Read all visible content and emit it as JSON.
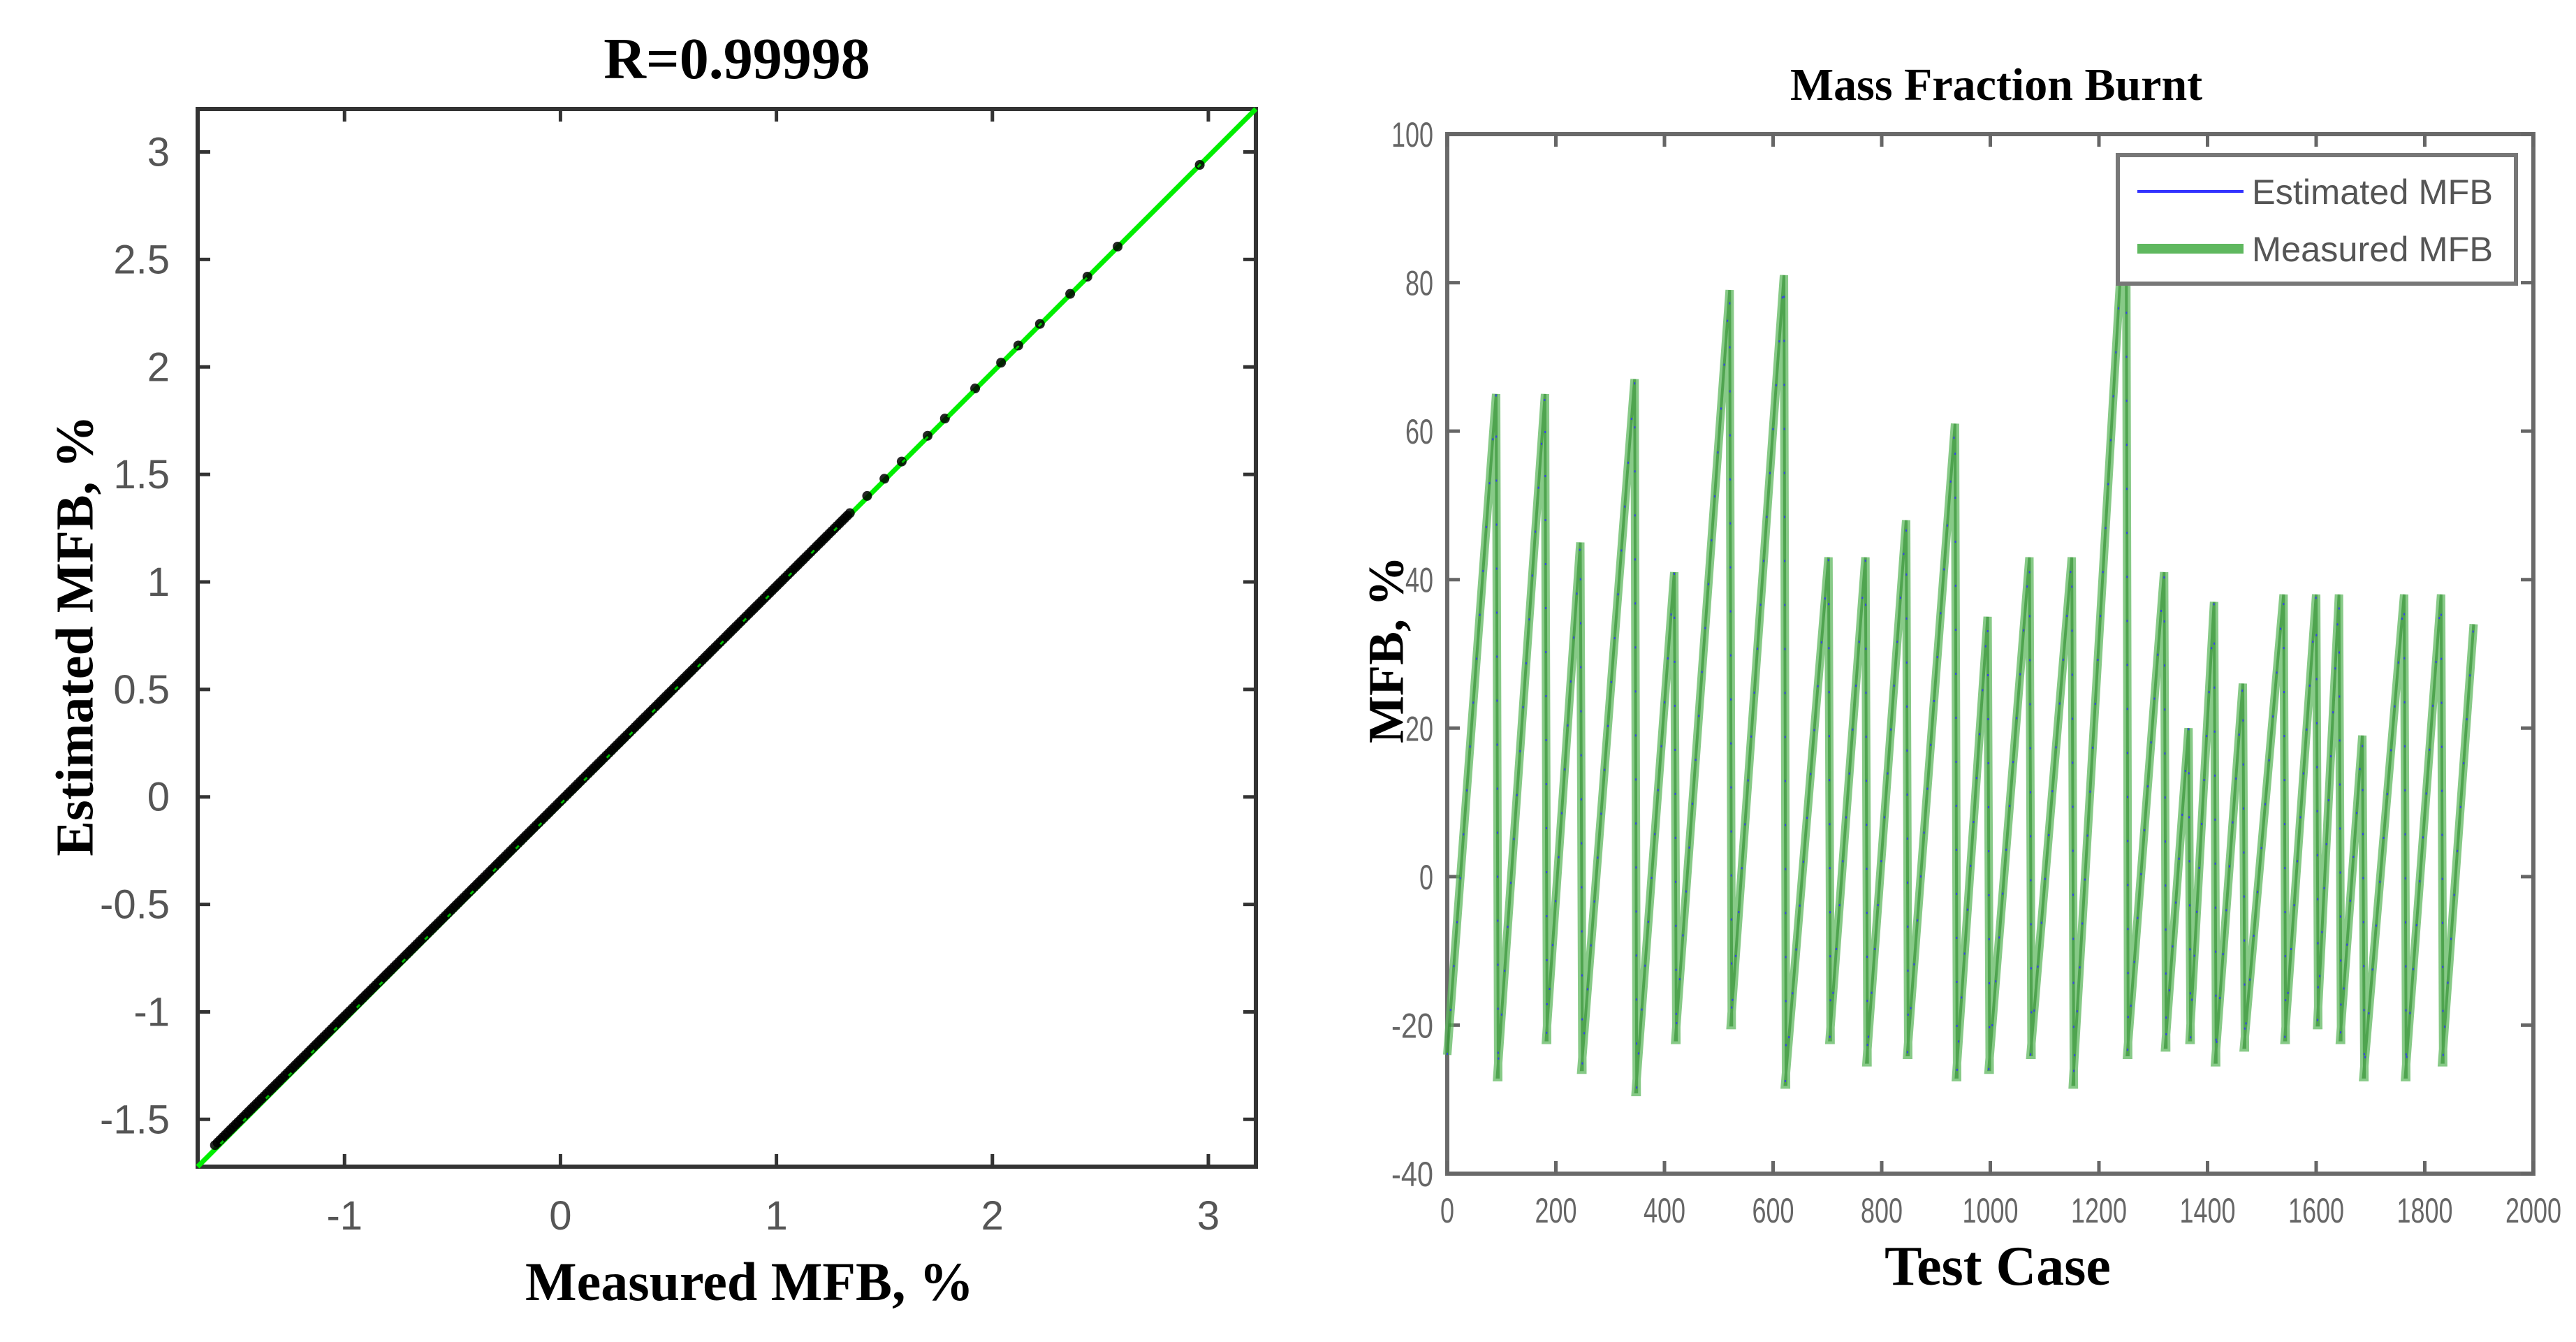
{
  "left_chart": {
    "title": "R=0.99998",
    "xlabel": "Measured MFB, %",
    "ylabel": "Estimated MFB, %",
    "xticks": [
      "-1",
      "0",
      "1",
      "2",
      "3"
    ],
    "yticks": [
      "-1.5",
      "-1",
      "-0.5",
      "0",
      "0.5",
      "1",
      "1.5",
      "2",
      "2.5",
      "3"
    ]
  },
  "right_chart": {
    "title": "Mass Fraction Burnt",
    "xlabel": "Test Case",
    "ylabel": "MFB, %",
    "xticks": [
      "0",
      "200",
      "400",
      "600",
      "800",
      "1000",
      "1200",
      "1400",
      "1600",
      "1800",
      "2000"
    ],
    "yticks": [
      "-40",
      "-20",
      "0",
      "20",
      "40",
      "60",
      "80",
      "100"
    ],
    "legend": [
      {
        "label": "Estimated MFB",
        "color": "#3333ff"
      },
      {
        "label": "Measured MFB",
        "color": "#5fb85f"
      }
    ]
  },
  "chart_data": [
    {
      "type": "scatter",
      "title": "R=0.99998",
      "xlabel": "Measured MFB, %",
      "ylabel": "Estimated MFB, %",
      "xlim": [
        -1.68,
        3.22
      ],
      "ylim": [
        -1.72,
        3.2
      ],
      "xticks": [
        -1,
        0,
        1,
        2,
        3
      ],
      "yticks": [
        -1.5,
        -1,
        -0.5,
        0,
        0.5,
        1,
        1.5,
        2,
        2.5,
        3
      ],
      "grid": false,
      "fit_line": {
        "color": "#00ee00",
        "from": [
          -1.68,
          -1.72
        ],
        "to": [
          3.22,
          3.2
        ]
      },
      "points_color": "#000000",
      "points_dense_range": [
        -1.6,
        1.35
      ],
      "points_sparse": [
        1.42,
        1.5,
        1.58,
        1.7,
        1.78,
        1.92,
        2.04,
        2.12,
        2.22,
        2.36,
        2.44,
        2.58,
        2.96
      ],
      "annotation_r": 0.99998
    },
    {
      "type": "line",
      "title": "Mass Fraction Burnt",
      "xlabel": "Test Case",
      "ylabel": "MFB, %",
      "xlim": [
        0,
        2000
      ],
      "ylim": [
        -40,
        100
      ],
      "xticks": [
        0,
        200,
        400,
        600,
        800,
        1000,
        1200,
        1400,
        1600,
        1800,
        2000
      ],
      "yticks": [
        -40,
        -20,
        0,
        20,
        40,
        60,
        80,
        100
      ],
      "grid": false,
      "legend_position": "upper right",
      "series": [
        {
          "name": "Estimated MFB",
          "color": "#3333ff"
        },
        {
          "name": "Measured MFB",
          "color": "#5fb85f"
        }
      ],
      "sawtooth_cycles": [
        {
          "x_start": 0,
          "x_end": 90,
          "min": -24,
          "max": 65
        },
        {
          "x_start": 92,
          "x_end": 180,
          "min": -27,
          "max": 65
        },
        {
          "x_start": 182,
          "x_end": 245,
          "min": -22,
          "max": 45
        },
        {
          "x_start": 247,
          "x_end": 345,
          "min": -26,
          "max": 67
        },
        {
          "x_start": 347,
          "x_end": 418,
          "min": -29,
          "max": 41
        },
        {
          "x_start": 420,
          "x_end": 520,
          "min": -22,
          "max": 79
        },
        {
          "x_start": 522,
          "x_end": 620,
          "min": -20,
          "max": 81
        },
        {
          "x_start": 622,
          "x_end": 702,
          "min": -28,
          "max": 43
        },
        {
          "x_start": 704,
          "x_end": 770,
          "min": -22,
          "max": 43
        },
        {
          "x_start": 772,
          "x_end": 845,
          "min": -25,
          "max": 48
        },
        {
          "x_start": 847,
          "x_end": 935,
          "min": -24,
          "max": 61
        },
        {
          "x_start": 937,
          "x_end": 995,
          "min": -27,
          "max": 35
        },
        {
          "x_start": 997,
          "x_end": 1072,
          "min": -26,
          "max": 43
        },
        {
          "x_start": 1074,
          "x_end": 1150,
          "min": -24,
          "max": 43
        },
        {
          "x_start": 1152,
          "x_end": 1250,
          "min": -28,
          "max": 94
        },
        {
          "x_start": 1252,
          "x_end": 1320,
          "min": -24,
          "max": 41
        },
        {
          "x_start": 1322,
          "x_end": 1365,
          "min": -23,
          "max": 20
        },
        {
          "x_start": 1367,
          "x_end": 1412,
          "min": -22,
          "max": 37
        },
        {
          "x_start": 1414,
          "x_end": 1465,
          "min": -25,
          "max": 26
        },
        {
          "x_start": 1467,
          "x_end": 1540,
          "min": -23,
          "max": 38
        },
        {
          "x_start": 1542,
          "x_end": 1600,
          "min": -22,
          "max": 38
        },
        {
          "x_start": 1602,
          "x_end": 1642,
          "min": -20,
          "max": 38
        },
        {
          "x_start": 1644,
          "x_end": 1685,
          "min": -22,
          "max": 19
        },
        {
          "x_start": 1687,
          "x_end": 1762,
          "min": -27,
          "max": 38
        },
        {
          "x_start": 1764,
          "x_end": 1830,
          "min": -27,
          "max": 38
        },
        {
          "x_start": 1832,
          "x_end": 1890,
          "min": -25,
          "max": 34
        }
      ]
    }
  ]
}
